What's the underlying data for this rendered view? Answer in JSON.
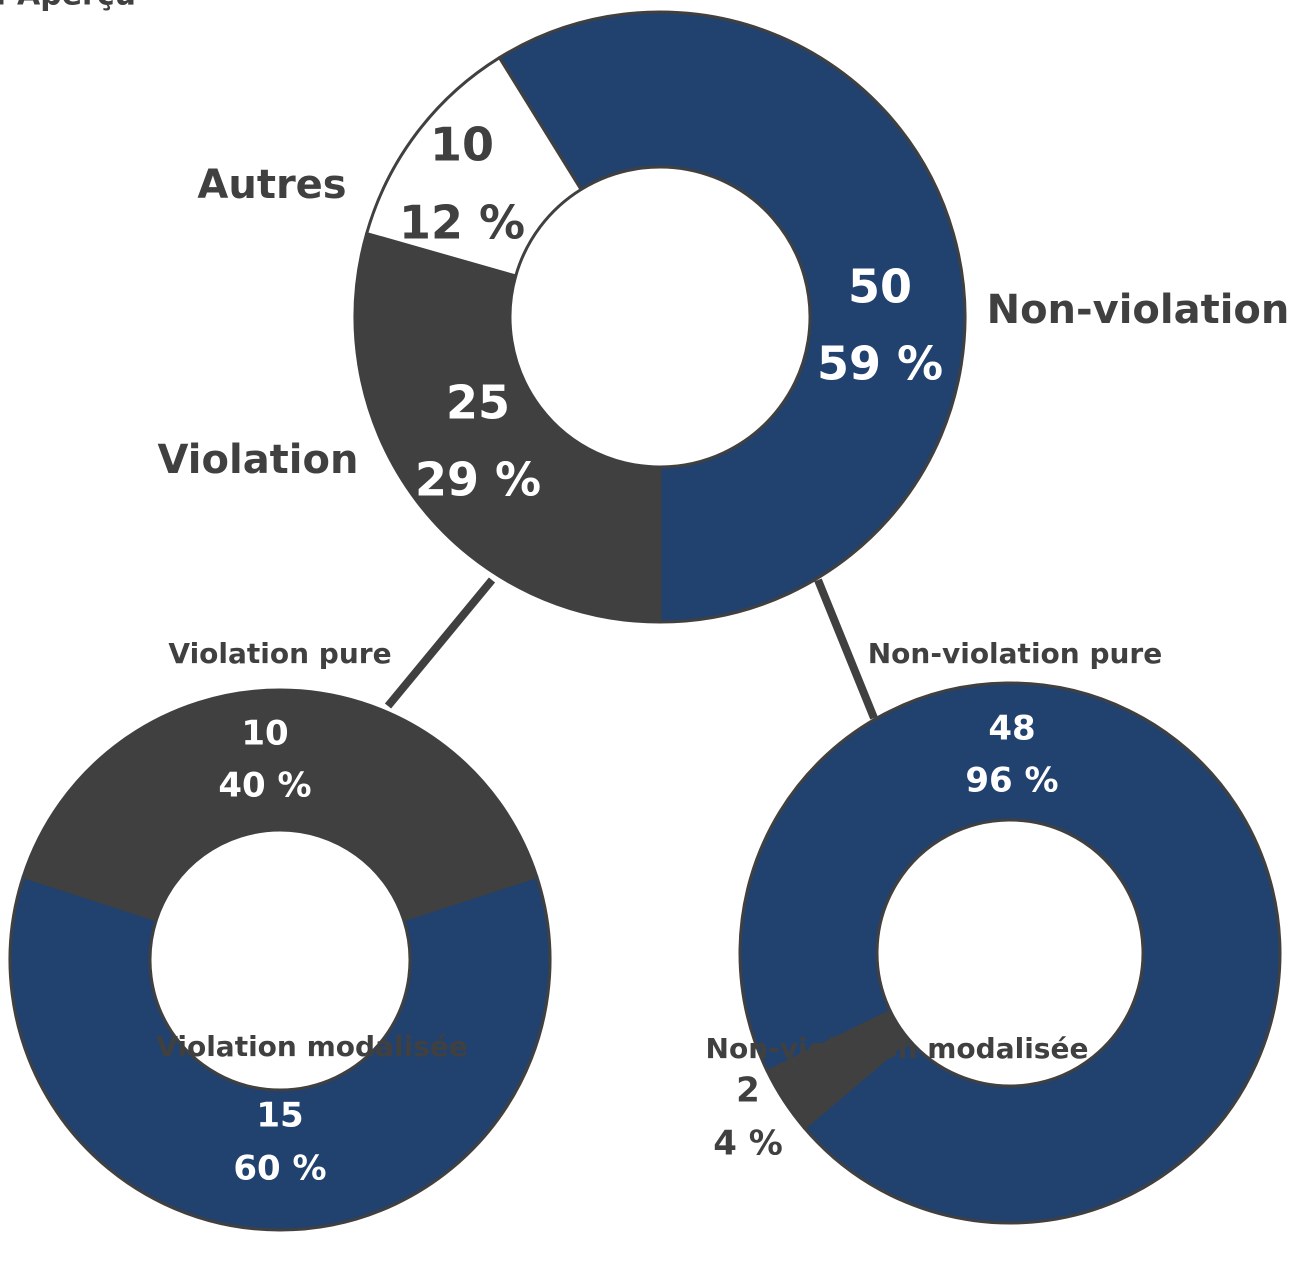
{
  "title": "I. Aperçu",
  "chart_data": [
    {
      "type": "donut",
      "categories": [
        "Non-violation",
        "Violation",
        "Autres"
      ],
      "values": [
        50,
        25,
        10
      ],
      "percentages": [
        59,
        29,
        12
      ],
      "percentage_labels": [
        "59 %",
        "29 %",
        "12 %"
      ],
      "colors": [
        "#21416f",
        "#404040",
        "#ffffff"
      ]
    },
    {
      "type": "donut",
      "categories": [
        "Violation pure",
        "Violation modalisée"
      ],
      "values": [
        10,
        15
      ],
      "percentages": [
        40,
        60
      ],
      "percentage_labels": [
        "40 %",
        "60 %"
      ],
      "colors": [
        "#404040",
        "#21416f"
      ]
    },
    {
      "type": "donut",
      "categories": [
        "Non-violation pure",
        "Non-violation modalisée"
      ],
      "values": [
        48,
        2
      ],
      "percentages": [
        96,
        4
      ],
      "percentage_labels": [
        "96 %",
        "4 %"
      ],
      "colors": [
        "#21416f",
        "#404040"
      ]
    }
  ]
}
